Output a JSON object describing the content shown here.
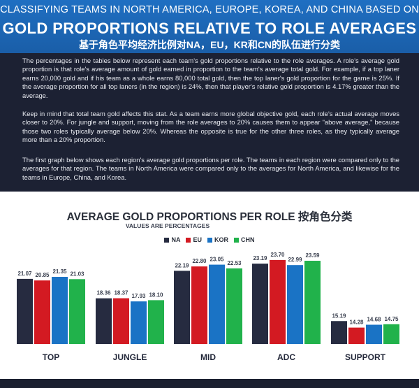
{
  "header": {
    "line1": "CLASSIFYING TEAMS IN NORTH AMERICA, EUROPE, KOREA, AND CHINA BASED ON",
    "line2": "GOLD PROPORTIONS RELATIVE TO ROLE AVERAGES",
    "line3": "基于角色平均经济比例对NA，EU，KR和CN的队伍进行分类"
  },
  "intro": {
    "p1": "The percentages in the tables below represent each team's gold proportions relative to the role averages. A role's average gold proportion is that role's average amount of gold earned in proportion to the team's average total gold. For example, if a top laner earns 20,000 gold and if his team as a whole earns 80,000 total gold, then the top laner's gold proportion for the game is 25%. If the average proportion for all top laners (in the region) is 24%, then that player's relative gold proportion is 4.17% greater than the average.",
    "p2": "Keep in mind that total team gold affects this stat. As a team earns more global objective gold, each role's actual average moves closer to 20%. For jungle and support, moving from the role averages to 20% causes them to appear \"above average,\" because those two roles typically average below 20%. Whereas the opposite is true for the other three roles, as they typically average more than a 20% proportion.",
    "p3": "The first graph below shows each region's average gold proportions per role. The teams in each region were compared only to the averages for that region. The teams in North America were compared only to the averages for North America, and likewise for the teams in Europe, China, and Korea."
  },
  "chart_data": {
    "type": "bar",
    "title": "AVERAGE GOLD PROPORTIONS PER ROLE 按角色分类",
    "subtitle": "VALUES ARE PERCENTAGES",
    "xlabel": "",
    "ylabel": "",
    "ylim": [
      12,
      25
    ],
    "grid": false,
    "legend_position": "top-center",
    "categories": [
      "TOP",
      "JUNGLE",
      "MID",
      "ADC",
      "SUPPORT"
    ],
    "series": [
      {
        "name": "NA",
        "color": "#262b40",
        "values": [
          21.07,
          18.36,
          22.19,
          23.19,
          15.19
        ]
      },
      {
        "name": "EU",
        "color": "#d31a22",
        "values": [
          20.85,
          18.37,
          22.8,
          23.7,
          14.28
        ]
      },
      {
        "name": "KOR",
        "color": "#1a73c5",
        "values": [
          21.35,
          17.93,
          23.05,
          22.99,
          14.68
        ]
      },
      {
        "name": "CHN",
        "color": "#21b24b",
        "values": [
          21.03,
          18.1,
          22.53,
          23.59,
          14.75
        ]
      }
    ]
  }
}
